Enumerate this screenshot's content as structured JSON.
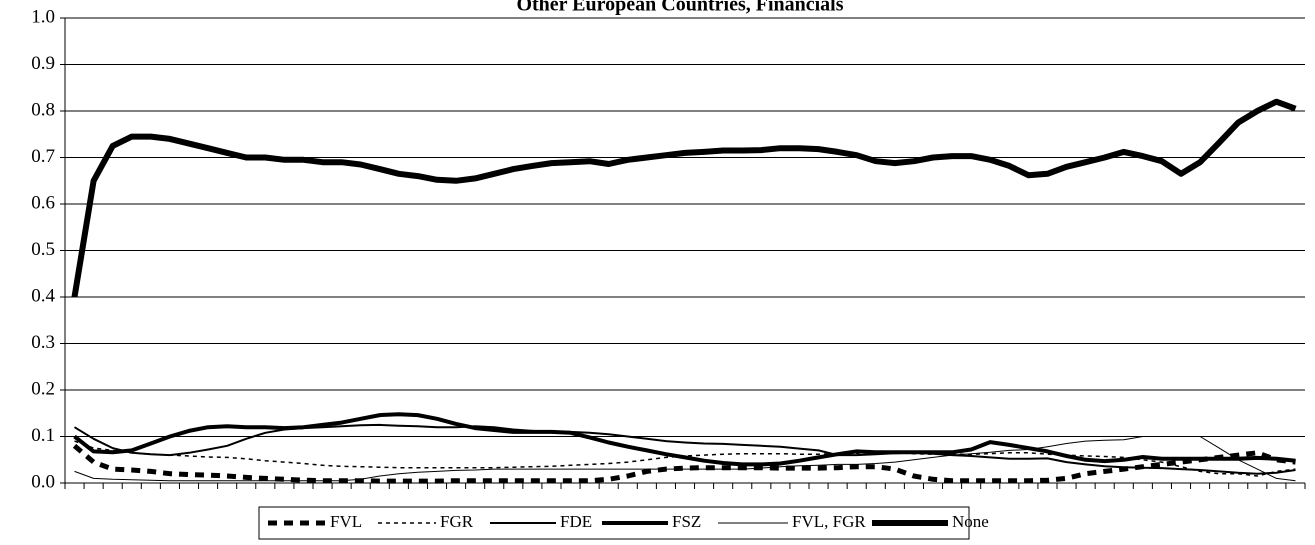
{
  "chart_data": {
    "type": "line",
    "title": "Other European Countries, Financials",
    "categories": [
      null,
      null,
      null,
      null,
      null,
      null,
      null,
      null,
      null,
      null,
      null,
      null,
      null,
      null,
      null,
      null,
      null,
      null,
      null,
      null,
      null,
      null,
      null,
      null,
      null,
      null,
      null,
      null,
      null,
      null,
      null,
      null,
      null,
      null,
      null,
      null,
      null,
      null,
      null,
      null,
      null,
      null,
      null,
      null,
      null,
      null,
      null,
      null,
      null,
      null,
      null,
      null,
      null,
      null,
      null,
      null,
      null,
      null,
      null,
      null,
      null,
      null,
      null,
      null,
      null
    ],
    "ylim": [
      0,
      1
    ],
    "yticks": [
      {
        "value": 0,
        "label": "0.0"
      },
      0.1,
      0.2,
      0.3,
      0.4,
      0.5,
      0.6,
      0.7,
      0.8,
      0.9,
      {
        "value": 1,
        "label": "1.0"
      }
    ],
    "grid": true,
    "legend": "bottom",
    "series": [
      {
        "name": "FVL",
        "color": "#000000",
        "width": 5,
        "dash": "9,7",
        "values": [
          0.08,
          0.045,
          0.03,
          0.028,
          0.025,
          0.02,
          0.018,
          0.017,
          0.015,
          0.012,
          0.01,
          0.008,
          0.006,
          0.005,
          0.005,
          0.005,
          0.004,
          0.004,
          0.004,
          0.004,
          0.005,
          0.005,
          0.005,
          0.005,
          0.005,
          0.005,
          0.005,
          0.005,
          0.008,
          0.015,
          0.025,
          0.03,
          0.032,
          0.033,
          0.033,
          0.033,
          0.033,
          0.032,
          0.032,
          0.032,
          0.033,
          0.035,
          0.035,
          0.03,
          0.015,
          0.008,
          0.005,
          0.005,
          0.005,
          0.005,
          0.005,
          0.006,
          0.01,
          0.02,
          0.025,
          0.03,
          0.035,
          0.04,
          0.045,
          0.05,
          0.055,
          0.06,
          0.065,
          0.05,
          0.045
        ]
      },
      {
        "name": "FGR",
        "color": "#000000",
        "width": 1.5,
        "dash": "4,4",
        "values": [
          0.09,
          0.075,
          0.07,
          0.065,
          0.062,
          0.06,
          0.058,
          0.056,
          0.055,
          0.052,
          0.048,
          0.045,
          0.042,
          0.038,
          0.036,
          0.035,
          0.034,
          0.033,
          0.033,
          0.033,
          0.033,
          0.033,
          0.033,
          0.034,
          0.035,
          0.036,
          0.038,
          0.04,
          0.042,
          0.045,
          0.05,
          0.055,
          0.058,
          0.06,
          0.062,
          0.063,
          0.063,
          0.063,
          0.062,
          0.062,
          0.063,
          0.064,
          0.065,
          0.065,
          0.063,
          0.062,
          0.062,
          0.062,
          0.063,
          0.065,
          0.065,
          0.062,
          0.06,
          0.058,
          0.057,
          0.055,
          0.05,
          0.045,
          0.035,
          0.025,
          0.02,
          0.02,
          0.015,
          0.025,
          0.03
        ]
      },
      {
        "name": "FDE",
        "color": "#000000",
        "width": 2,
        "dash": "none",
        "values": [
          0.12,
          0.095,
          0.075,
          0.065,
          0.062,
          0.06,
          0.065,
          0.072,
          0.08,
          0.095,
          0.108,
          0.115,
          0.118,
          0.12,
          0.122,
          0.124,
          0.125,
          0.123,
          0.122,
          0.12,
          0.12,
          0.122,
          0.12,
          0.115,
          0.112,
          0.11,
          0.11,
          0.108,
          0.105,
          0.1,
          0.095,
          0.09,
          0.087,
          0.085,
          0.084,
          0.082,
          0.08,
          0.078,
          0.074,
          0.07,
          0.06,
          0.06,
          0.062,
          0.064,
          0.065,
          0.063,
          0.06,
          0.058,
          0.055,
          0.052,
          0.052,
          0.053,
          0.045,
          0.04,
          0.036,
          0.034,
          0.033,
          0.032,
          0.03,
          0.028,
          0.025,
          0.022,
          0.02,
          0.022,
          0.028
        ]
      },
      {
        "name": "FSZ",
        "color": "#000000",
        "width": 4,
        "dash": "none",
        "values": [
          0.1,
          0.068,
          0.066,
          0.07,
          0.085,
          0.1,
          0.112,
          0.12,
          0.122,
          0.12,
          0.12,
          0.118,
          0.12,
          0.125,
          0.13,
          0.138,
          0.146,
          0.148,
          0.146,
          0.138,
          0.127,
          0.118,
          0.114,
          0.11,
          0.11,
          0.11,
          0.108,
          0.098,
          0.087,
          0.078,
          0.07,
          0.062,
          0.055,
          0.048,
          0.043,
          0.04,
          0.04,
          0.042,
          0.048,
          0.055,
          0.062,
          0.068,
          0.066,
          0.066,
          0.066,
          0.066,
          0.066,
          0.072,
          0.088,
          0.082,
          0.075,
          0.068,
          0.058,
          0.05,
          0.047,
          0.05,
          0.056,
          0.052,
          0.052,
          0.052,
          0.052,
          0.052,
          0.054,
          0.052,
          0.048
        ]
      },
      {
        "name": "FVL, FGR",
        "color": "#000000",
        "width": 1,
        "dash": "none",
        "values": [
          0.025,
          0.01,
          0.008,
          0.007,
          0.006,
          0.005,
          0.005,
          0.005,
          0.005,
          0.005,
          0.005,
          0.005,
          0.005,
          0.005,
          0.005,
          0.008,
          0.015,
          0.02,
          0.023,
          0.025,
          0.027,
          0.028,
          0.03,
          0.03,
          0.03,
          0.03,
          0.03,
          0.03,
          0.03,
          0.03,
          0.03,
          0.03,
          0.03,
          0.03,
          0.03,
          0.03,
          0.032,
          0.035,
          0.037,
          0.038,
          0.04,
          0.04,
          0.042,
          0.045,
          0.05,
          0.055,
          0.06,
          0.063,
          0.066,
          0.07,
          0.072,
          0.078,
          0.085,
          0.09,
          0.092,
          0.093,
          0.1,
          0.1,
          0.1,
          0.1,
          0.075,
          0.05,
          0.03,
          0.01,
          0.005
        ]
      },
      {
        "name": "None",
        "color": "#000000",
        "width": 6,
        "dash": "none",
        "values": [
          0.4,
          0.65,
          0.725,
          0.745,
          0.745,
          0.74,
          0.73,
          0.72,
          0.71,
          0.7,
          0.7,
          0.695,
          0.695,
          0.69,
          0.69,
          0.685,
          0.675,
          0.665,
          0.66,
          0.652,
          0.65,
          0.655,
          0.665,
          0.675,
          0.682,
          0.688,
          0.69,
          0.692,
          0.686,
          0.695,
          0.7,
          0.705,
          0.71,
          0.712,
          0.715,
          0.715,
          0.716,
          0.72,
          0.72,
          0.718,
          0.712,
          0.705,
          0.692,
          0.688,
          0.692,
          0.7,
          0.703,
          0.703,
          0.695,
          0.682,
          0.662,
          0.665,
          0.68,
          0.69,
          0.7,
          0.712,
          0.703,
          0.692,
          0.665,
          0.69,
          0.732,
          0.775,
          0.8,
          0.82,
          0.805
        ]
      }
    ]
  }
}
